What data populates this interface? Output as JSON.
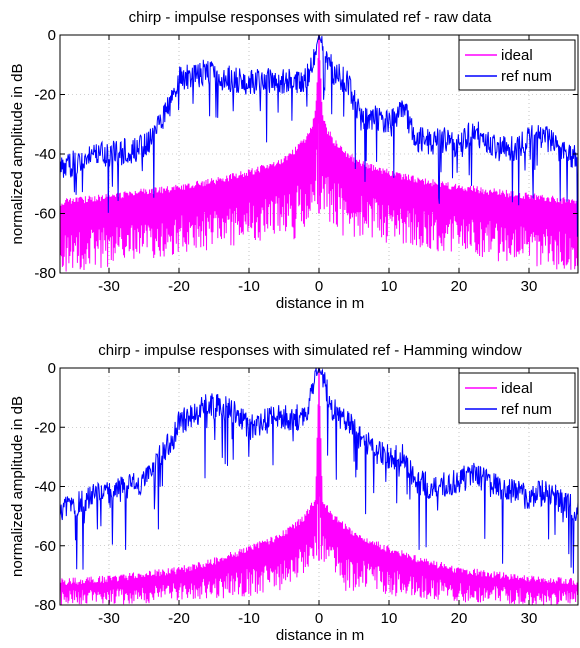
{
  "chart_data": [
    {
      "type": "line",
      "title": "chirp - impulse responses with simulated ref - raw data",
      "xlabel": "distance in m",
      "ylabel": "normalized amplitude in dB",
      "xlim": [
        -37,
        37
      ],
      "ylim": [
        -80,
        0
      ],
      "xticks": [
        -30,
        -20,
        -10,
        0,
        10,
        20,
        30
      ],
      "yticks": [
        0,
        -20,
        -40,
        -60,
        -80
      ],
      "grid": true,
      "legend_position": "top-right",
      "series": [
        {
          "name": "ideal",
          "color": "#ff00ff",
          "style": "envelope",
          "x": [
            -37,
            -30,
            -20,
            -15,
            -10,
            -6,
            -4,
            -2,
            -1,
            -0.5,
            0,
            0.5,
            1,
            2,
            4,
            6,
            10,
            15,
            20,
            30,
            37
          ],
          "upper": [
            -55,
            -53,
            -50,
            -48,
            -45,
            -42,
            -39,
            -34,
            -30,
            -25,
            0,
            -25,
            -30,
            -34,
            -39,
            -42,
            -45,
            -48,
            -50,
            -53,
            -55
          ],
          "lower": [
            -80,
            -78,
            -74,
            -72,
            -70,
            -68,
            -70,
            -65,
            -62,
            -60,
            -60,
            -60,
            -62,
            -65,
            -70,
            -68,
            -70,
            -72,
            -74,
            -78,
            -80
          ]
        },
        {
          "name": "ref num",
          "color": "#0000ff",
          "style": "noisy",
          "x": [
            -37,
            -34,
            -30,
            -25,
            -23,
            -21,
            -20,
            -18,
            -16,
            -14,
            -12,
            -10,
            -8,
            -6,
            -4,
            -2,
            -1,
            0,
            1,
            2,
            4,
            6,
            8,
            10,
            12,
            14,
            16,
            18,
            20,
            22,
            25,
            28,
            30,
            32,
            34,
            37
          ],
          "y": [
            -45,
            -42,
            -40,
            -38,
            -30,
            -22,
            -15,
            -14,
            -12,
            -14,
            -15,
            -16,
            -15,
            -15,
            -16,
            -15,
            -10,
            0,
            -8,
            -12,
            -16,
            -28,
            -28,
            -30,
            -25,
            -35,
            -36,
            -35,
            -38,
            -32,
            -38,
            -38,
            -35,
            -34,
            -38,
            -42
          ]
        }
      ]
    },
    {
      "type": "line",
      "title": "chirp - impulse responses with simulated ref - Hamming window",
      "xlabel": "distance in m",
      "ylabel": "normalized amplitude in dB",
      "xlim": [
        -37,
        37
      ],
      "ylim": [
        -80,
        0
      ],
      "xticks": [
        -30,
        -20,
        -10,
        0,
        10,
        20,
        30
      ],
      "yticks": [
        0,
        -20,
        -40,
        -60,
        -80
      ],
      "grid": true,
      "legend_position": "top-right",
      "series": [
        {
          "name": "ideal",
          "color": "#ff00ff",
          "style": "envelope",
          "x": [
            -37,
            -30,
            -20,
            -15,
            -10,
            -6,
            -4,
            -2,
            -1,
            -0.5,
            0,
            0.5,
            1,
            2,
            4,
            6,
            10,
            15,
            20,
            30,
            37
          ],
          "upper": [
            -71,
            -70,
            -67,
            -64,
            -60,
            -56,
            -53,
            -49,
            -45,
            -43,
            0,
            -43,
            -45,
            -49,
            -53,
            -56,
            -60,
            -64,
            -67,
            -70,
            -71
          ],
          "lower": [
            -80,
            -80,
            -79,
            -78,
            -77,
            -75,
            -76,
            -70,
            -67,
            -65,
            -65,
            -65,
            -67,
            -70,
            -76,
            -75,
            -77,
            -78,
            -79,
            -80,
            -80
          ]
        },
        {
          "name": "ref num",
          "color": "#0000ff",
          "style": "noisy",
          "x": [
            -37,
            -34,
            -30,
            -25,
            -23,
            -21,
            -20,
            -18,
            -16,
            -14,
            -12,
            -10,
            -8,
            -6,
            -4,
            -2,
            -1,
            0,
            1,
            2,
            4,
            6,
            8,
            10,
            12,
            14,
            16,
            18,
            20,
            22,
            25,
            28,
            30,
            32,
            34,
            37
          ],
          "y": [
            -48,
            -45,
            -42,
            -38,
            -30,
            -25,
            -18,
            -16,
            -13,
            -13,
            -15,
            -20,
            -18,
            -17,
            -17,
            -16,
            -8,
            0,
            -7,
            -14,
            -18,
            -24,
            -28,
            -30,
            -30,
            -38,
            -40,
            -39,
            -38,
            -36,
            -40,
            -42,
            -44,
            -42,
            -44,
            -48
          ]
        }
      ]
    }
  ]
}
